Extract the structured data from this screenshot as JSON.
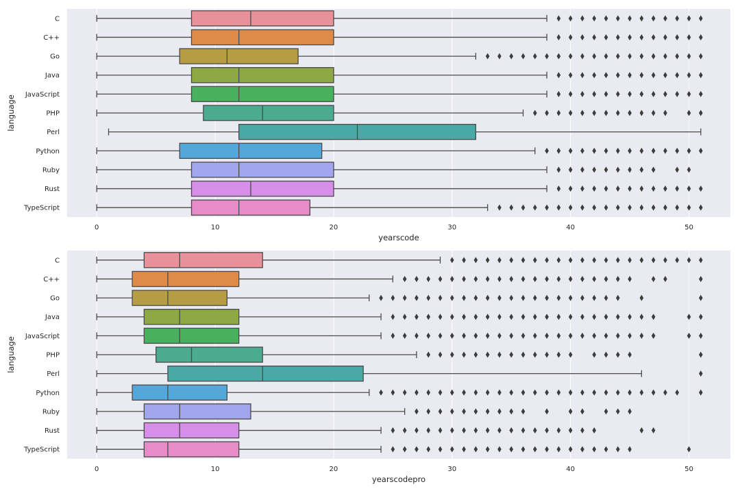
{
  "chart_data": [
    {
      "type": "boxplot",
      "orientation": "horizontal",
      "xlabel": "yearscode",
      "ylabel": "language",
      "xlim": [
        -2.5,
        53.5
      ],
      "xticks": [
        0,
        10,
        20,
        30,
        40,
        50
      ],
      "categories": [
        "C",
        "C++",
        "Go",
        "Java",
        "JavaScript",
        "PHP",
        "Perl",
        "Python",
        "Ruby",
        "Rust",
        "TypeScript"
      ],
      "colors": [
        "#e8919a",
        "#de8b4a",
        "#b59c45",
        "#8ea843",
        "#49b05d",
        "#4bab8e",
        "#4aa8a5",
        "#53a8d9",
        "#a1a6ef",
        "#d68ee9",
        "#e68cc9"
      ],
      "boxes": [
        {
          "whislo": 0,
          "q1": 8,
          "med": 13,
          "q3": 20,
          "whishi": 38,
          "fliers": [
            39,
            40,
            41,
            42,
            43,
            44,
            45,
            46,
            47,
            48,
            49,
            50,
            51
          ]
        },
        {
          "whislo": 0,
          "q1": 8,
          "med": 12,
          "q3": 20,
          "whishi": 38,
          "fliers": [
            39,
            40,
            41,
            42,
            43,
            44,
            45,
            46,
            47,
            48,
            49,
            50,
            51
          ]
        },
        {
          "whislo": 0,
          "q1": 7,
          "med": 11,
          "q3": 17,
          "whishi": 32,
          "fliers": [
            33,
            34,
            35,
            36,
            37,
            38,
            39,
            40,
            41,
            42,
            43,
            44,
            45,
            46,
            47,
            48,
            49,
            50,
            51
          ]
        },
        {
          "whislo": 0,
          "q1": 8,
          "med": 12,
          "q3": 20,
          "whishi": 38,
          "fliers": [
            39,
            40,
            41,
            42,
            43,
            44,
            45,
            46,
            47,
            48,
            49,
            50,
            51
          ]
        },
        {
          "whislo": 0,
          "q1": 8,
          "med": 12,
          "q3": 20,
          "whishi": 38,
          "fliers": [
            39,
            40,
            41,
            42,
            43,
            44,
            45,
            46,
            47,
            48,
            49,
            50,
            51
          ]
        },
        {
          "whislo": 0,
          "q1": 9,
          "med": 14,
          "q3": 20,
          "whishi": 36,
          "fliers": [
            37,
            38,
            39,
            40,
            41,
            42,
            43,
            44,
            45,
            46,
            47,
            48,
            50,
            51
          ]
        },
        {
          "whislo": 1,
          "q1": 12,
          "med": 22,
          "q3": 32,
          "whishi": 51,
          "fliers": []
        },
        {
          "whislo": 0,
          "q1": 7,
          "med": 12,
          "q3": 19,
          "whishi": 37,
          "fliers": [
            38,
            39,
            40,
            41,
            42,
            43,
            44,
            45,
            46,
            47,
            48,
            49,
            50,
            51
          ]
        },
        {
          "whislo": 0,
          "q1": 8,
          "med": 12,
          "q3": 20,
          "whishi": 38,
          "fliers": [
            39,
            40,
            41,
            42,
            43,
            44,
            45,
            46,
            47,
            49,
            50
          ]
        },
        {
          "whislo": 0,
          "q1": 8,
          "med": 13,
          "q3": 20,
          "whishi": 38,
          "fliers": [
            39,
            40,
            41,
            42,
            43,
            44,
            45,
            46,
            47,
            48,
            49,
            50,
            51
          ]
        },
        {
          "whislo": 0,
          "q1": 8,
          "med": 12,
          "q3": 18,
          "whishi": 33,
          "fliers": [
            34,
            35,
            36,
            37,
            38,
            39,
            40,
            41,
            42,
            43,
            44,
            45,
            46,
            47,
            48,
            49,
            50,
            51
          ]
        }
      ]
    },
    {
      "type": "boxplot",
      "orientation": "horizontal",
      "xlabel": "yearscodepro",
      "ylabel": "language",
      "xlim": [
        -2.5,
        53.5
      ],
      "xticks": [
        0,
        10,
        20,
        30,
        40,
        50
      ],
      "categories": [
        "C",
        "C++",
        "Go",
        "Java",
        "JavaScript",
        "PHP",
        "Perl",
        "Python",
        "Ruby",
        "Rust",
        "TypeScript"
      ],
      "colors": [
        "#e8919a",
        "#de8b4a",
        "#b59c45",
        "#8ea843",
        "#49b05d",
        "#4bab8e",
        "#4aa8a5",
        "#53a8d9",
        "#a1a6ef",
        "#d68ee9",
        "#e68cc9"
      ],
      "boxes": [
        {
          "whislo": 0,
          "q1": 4,
          "med": 7,
          "q3": 14,
          "whishi": 29,
          "fliers": [
            30,
            31,
            32,
            33,
            34,
            35,
            36,
            37,
            38,
            39,
            40,
            41,
            42,
            43,
            44,
            45,
            46,
            47,
            48,
            49,
            50,
            51
          ]
        },
        {
          "whislo": 0,
          "q1": 3,
          "med": 6,
          "q3": 12,
          "whishi": 25,
          "fliers": [
            26,
            27,
            28,
            29,
            30,
            31,
            32,
            33,
            34,
            35,
            36,
            37,
            38,
            39,
            40,
            41,
            42,
            43,
            44,
            45,
            47,
            48,
            51
          ]
        },
        {
          "whislo": 0,
          "q1": 3,
          "med": 6,
          "q3": 11,
          "whishi": 23,
          "fliers": [
            24,
            25,
            26,
            27,
            28,
            29,
            30,
            31,
            32,
            33,
            34,
            35,
            36,
            37,
            38,
            39,
            40,
            41,
            42,
            43,
            44,
            46,
            51
          ]
        },
        {
          "whislo": 0,
          "q1": 4,
          "med": 7,
          "q3": 12,
          "whishi": 24,
          "fliers": [
            25,
            26,
            27,
            28,
            29,
            30,
            31,
            32,
            33,
            34,
            35,
            36,
            37,
            38,
            39,
            40,
            41,
            42,
            43,
            44,
            45,
            46,
            47,
            50,
            51
          ]
        },
        {
          "whislo": 0,
          "q1": 4,
          "med": 7,
          "q3": 12,
          "whishi": 24,
          "fliers": [
            25,
            26,
            27,
            28,
            29,
            30,
            31,
            32,
            33,
            34,
            35,
            36,
            37,
            38,
            39,
            40,
            41,
            42,
            43,
            44,
            45,
            46,
            47,
            50,
            51
          ]
        },
        {
          "whislo": 0,
          "q1": 5,
          "med": 8,
          "q3": 14,
          "whishi": 27,
          "fliers": [
            28,
            29,
            30,
            31,
            32,
            33,
            34,
            35,
            36,
            37,
            38,
            39,
            40,
            42,
            43,
            44,
            45,
            51
          ]
        },
        {
          "whislo": 0,
          "q1": 6,
          "med": 14,
          "q3": 22.5,
          "whishi": 46,
          "fliers": [
            51
          ]
        },
        {
          "whislo": 0,
          "q1": 3,
          "med": 6,
          "q3": 11,
          "whishi": 23,
          "fliers": [
            24,
            25,
            26,
            27,
            28,
            29,
            30,
            31,
            32,
            33,
            34,
            35,
            36,
            37,
            38,
            39,
            40,
            41,
            42,
            43,
            44,
            45,
            46,
            47,
            48,
            49,
            51
          ]
        },
        {
          "whislo": 0,
          "q1": 4,
          "med": 7,
          "q3": 13,
          "whishi": 26,
          "fliers": [
            27,
            28,
            29,
            30,
            31,
            32,
            33,
            34,
            35,
            36,
            38,
            40,
            41,
            43,
            44,
            45
          ]
        },
        {
          "whislo": 0,
          "q1": 4,
          "med": 7,
          "q3": 12,
          "whishi": 24,
          "fliers": [
            25,
            26,
            27,
            28,
            29,
            30,
            31,
            32,
            33,
            34,
            35,
            36,
            37,
            38,
            39,
            40,
            41,
            42,
            46,
            47
          ]
        },
        {
          "whislo": 0,
          "q1": 4,
          "med": 6,
          "q3": 12,
          "whishi": 24,
          "fliers": [
            25,
            26,
            27,
            28,
            29,
            30,
            31,
            32,
            33,
            34,
            35,
            36,
            37,
            38,
            39,
            40,
            41,
            42,
            43,
            44,
            45,
            50
          ]
        }
      ]
    }
  ]
}
